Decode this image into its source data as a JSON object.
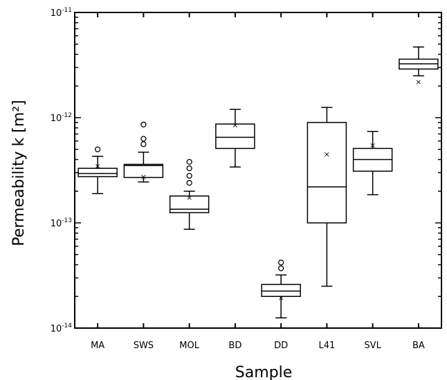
{
  "chart_data": {
    "type": "box",
    "xlabel": "Sample",
    "ylabel": "Permeability k [m²]",
    "yscale": "log",
    "ylim": [
      1e-14,
      1e-11
    ],
    "yticks": [
      {
        "value": 1e-14,
        "mantissa": "10",
        "exponent": "-14"
      },
      {
        "value": 1e-13,
        "mantissa": "10",
        "exponent": "-13"
      },
      {
        "value": 1e-12,
        "mantissa": "10",
        "exponent": "-12"
      },
      {
        "value": 1e-11,
        "mantissa": "10",
        "exponent": "-11"
      }
    ],
    "categories": [
      "MA",
      "SWS",
      "MOL",
      "BD",
      "DD",
      "L41",
      "SVL",
      "BA"
    ],
    "boxes": [
      {
        "name": "MA",
        "whisker_low": 1.9e-13,
        "q1": 2.75e-13,
        "median": 2.95e-13,
        "q3": 3.3e-13,
        "whisker_high": 4.3e-13,
        "mean": 3.5e-13,
        "outliers": [
          5e-13
        ]
      },
      {
        "name": "SWS",
        "whisker_low": 2.45e-13,
        "q1": 2.7e-13,
        "median": 3.5e-13,
        "q3": 3.6e-13,
        "whisker_high": 4.7e-13,
        "mean": 2.75e-13,
        "outliers": [
          5.6e-13,
          6.3e-13,
          8.6e-13
        ]
      },
      {
        "name": "MOL",
        "whisker_low": 8.7e-14,
        "q1": 1.25e-13,
        "median": 1.35e-13,
        "q3": 1.8e-13,
        "whisker_high": 2e-13,
        "mean": 1.75e-13,
        "outliers": [
          2.4e-13,
          2.8e-13,
          3.3e-13,
          3.8e-13
        ]
      },
      {
        "name": "BD",
        "whisker_low": 3.4e-13,
        "q1": 5.1e-13,
        "median": 6.5e-13,
        "q3": 8.7e-13,
        "whisker_high": 1.2e-12,
        "mean": 8.5e-13,
        "outliers": []
      },
      {
        "name": "DD",
        "whisker_low": 1.25e-14,
        "q1": 2e-14,
        "median": 2.25e-14,
        "q3": 2.6e-14,
        "whisker_high": 3.2e-14,
        "mean": 1.95e-14,
        "outliers": [
          3.7e-14,
          4.2e-14
        ]
      },
      {
        "name": "L41",
        "whisker_low": 2.5e-14,
        "q1": 1e-13,
        "median": 2.2e-13,
        "q3": 9e-13,
        "whisker_high": 1.25e-12,
        "mean": 4.5e-13,
        "outliers": []
      },
      {
        "name": "SVL",
        "whisker_low": 1.85e-13,
        "q1": 3.1e-13,
        "median": 4e-13,
        "q3": 5.1e-13,
        "whisker_high": 7.4e-13,
        "mean": 5.5e-13,
        "outliers": []
      },
      {
        "name": "BA",
        "whisker_low": 2.5e-12,
        "q1": 2.9e-12,
        "median": 3.25e-12,
        "q3": 3.6e-12,
        "whisker_high": 4.7e-12,
        "mean": 2.2e-12,
        "outliers": []
      }
    ],
    "grid": false,
    "legend": "none"
  }
}
